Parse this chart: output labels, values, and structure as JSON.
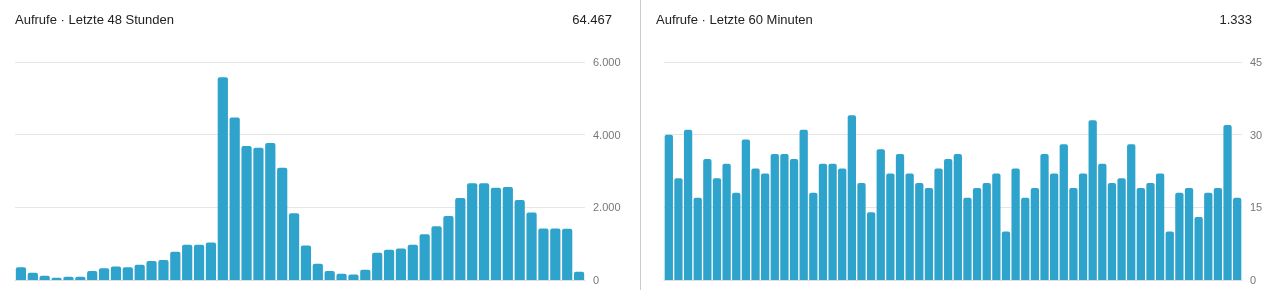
{
  "chart_data": [
    {
      "type": "bar",
      "title": "Aufrufe · Letzte 48 Stunden",
      "subtitle": "64.467",
      "color": "#2ea3cc",
      "categories": [
        null,
        null,
        null,
        null,
        null,
        null,
        null,
        null,
        null,
        null,
        null,
        null,
        null,
        null,
        null,
        null,
        null,
        null,
        null,
        null,
        null,
        null,
        null,
        null,
        null,
        null,
        null,
        null,
        null,
        null,
        null,
        null,
        null,
        null,
        null,
        null,
        null,
        null,
        null,
        null,
        null,
        null,
        null,
        null,
        null,
        null,
        null,
        null
      ],
      "values": [
        350,
        200,
        120,
        65,
        90,
        90,
        250,
        320,
        375,
        350,
        420,
        520,
        550,
        780,
        970,
        970,
        1030,
        5580,
        4470,
        3690,
        3640,
        3770,
        3090,
        1840,
        950,
        450,
        250,
        175,
        150,
        280,
        750,
        830,
        870,
        970,
        1260,
        1480,
        1760,
        2260,
        2660,
        2660,
        2540,
        2560,
        2200,
        1860,
        1420,
        1420,
        1410,
        230
      ],
      "ylim": [
        0,
        6000
      ],
      "yticks": [
        0,
        {
          "value": 2000,
          "label": "2.000"
        },
        {
          "value": 4000,
          "label": "4.000"
        },
        {
          "value": 6000,
          "label": "6.000"
        }
      ],
      "grid": "y",
      "tick_labels": "y"
    },
    {
      "type": "bar",
      "title": "Aufrufe · Letzte 60 Minuten",
      "subtitle": "1.333",
      "color": "#2ea3cc",
      "categories": [
        null,
        null,
        null,
        null,
        null,
        null,
        null,
        null,
        null,
        null,
        null,
        null,
        null,
        null,
        null,
        null,
        null,
        null,
        null,
        null,
        null,
        null,
        null,
        null,
        null,
        null,
        null,
        null,
        null,
        null,
        null,
        null,
        null,
        null,
        null,
        null,
        null,
        null,
        null,
        null,
        null,
        null,
        null,
        null,
        null,
        null,
        null,
        null,
        null,
        null,
        null,
        null,
        null,
        null,
        null,
        null,
        null,
        null,
        null,
        null
      ],
      "values": [
        30,
        21,
        31,
        17,
        25,
        21,
        24,
        18,
        29,
        23,
        22,
        26,
        26,
        25,
        31,
        18,
        24,
        24,
        23,
        34,
        20,
        14,
        27,
        22,
        26,
        22,
        20,
        19,
        23,
        25,
        26,
        17,
        19,
        20,
        22,
        10,
        23,
        17,
        19,
        26,
        22,
        28,
        19,
        22,
        33,
        24,
        20,
        21,
        28,
        19,
        20,
        22,
        10,
        18,
        19,
        13,
        18,
        19,
        32,
        17
      ],
      "ylim": [
        0,
        45
      ],
      "yticks": [
        0,
        15,
        30,
        45
      ],
      "grid": "y",
      "tick_labels": "y"
    }
  ]
}
